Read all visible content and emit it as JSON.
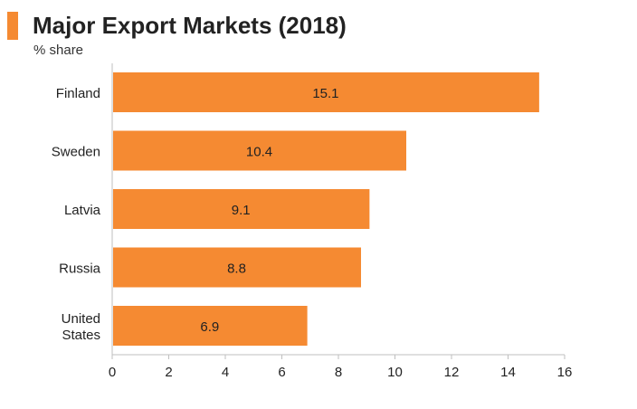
{
  "title": "Major Export Markets (2018)",
  "subtitle": "% share",
  "colors": {
    "accent": "#f58a32",
    "bar": "#f58a32",
    "axis": "#bfbfbf",
    "text": "#222222"
  },
  "chart_data": {
    "type": "bar",
    "orientation": "horizontal",
    "title": "Major Export Markets (2018)",
    "subtitle": "% share",
    "categories": [
      "Finland",
      "Sweden",
      "Latvia",
      "Russia",
      "United States"
    ],
    "category_labels": [
      [
        "Finland"
      ],
      [
        "Sweden"
      ],
      [
        "Latvia"
      ],
      [
        "Russia"
      ],
      [
        "United",
        "States"
      ]
    ],
    "values": [
      15.1,
      10.4,
      9.1,
      8.8,
      6.9
    ],
    "data_labels": [
      "15.1",
      "10.4",
      "9.1",
      "8.8",
      "6.9"
    ],
    "xlim": [
      0,
      16
    ],
    "xticks": [
      0,
      2,
      4,
      6,
      8,
      10,
      12,
      14,
      16
    ],
    "xlabel": "",
    "ylabel": "",
    "grid": false,
    "legend": "none"
  }
}
